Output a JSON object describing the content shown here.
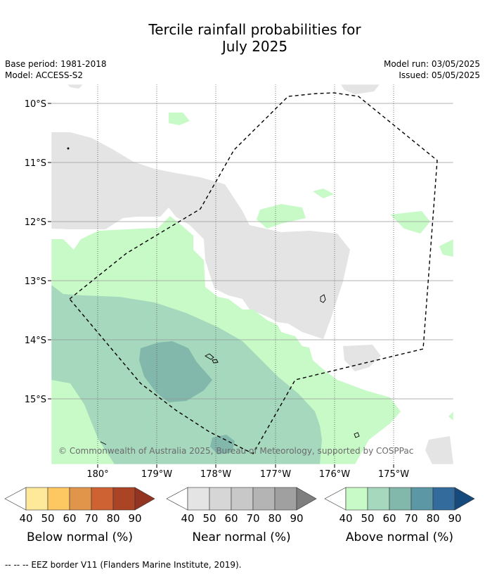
{
  "title_line1": "Tercile rainfall probabilities for",
  "title_line2": "July 2025",
  "meta": {
    "base_period": "Base period: 1981-2018",
    "model": "Model: ACCESS-S2",
    "model_run": "Model run: 03/05/2025",
    "issued": "Issued: 05/05/2025"
  },
  "map": {
    "lat_labels": [
      "10°S",
      "11°S",
      "12°S",
      "13°S",
      "14°S",
      "15°S"
    ],
    "lon_labels": [
      "180°",
      "179°W",
      "178°W",
      "177°W",
      "176°W",
      "175°W"
    ],
    "copyright": "© Commonwealth of Australia 2025, Bureau of Meteorology, supported by COSPPac"
  },
  "legends": [
    {
      "title": "Below normal (%)",
      "ticks": [
        "40",
        "50",
        "60",
        "70",
        "80",
        "90"
      ],
      "colors": [
        "#ffffff",
        "#fee99b",
        "#fdc762",
        "#e0954a",
        "#cf6233",
        "#aa4425",
        "#933322"
      ]
    },
    {
      "title": "Near normal (%)",
      "ticks": [
        "40",
        "50",
        "60",
        "70",
        "80",
        "90"
      ],
      "colors": [
        "#ffffff",
        "#e4e4e4",
        "#d6d6d6",
        "#c8c8c8",
        "#b4b4b4",
        "#a0a0a0",
        "#7e7e7e"
      ]
    },
    {
      "title": "Above normal (%)",
      "ticks": [
        "40",
        "50",
        "60",
        "70",
        "80",
        "90"
      ],
      "colors": [
        "#ffffff",
        "#c8fac8",
        "#a5d8bd",
        "#81b8ab",
        "#5b97a5",
        "#336b9c",
        "#174a7c"
      ]
    }
  ],
  "footer": "--  --  -- EEZ border V11 (Flanders Marine Institute, 2019)."
}
